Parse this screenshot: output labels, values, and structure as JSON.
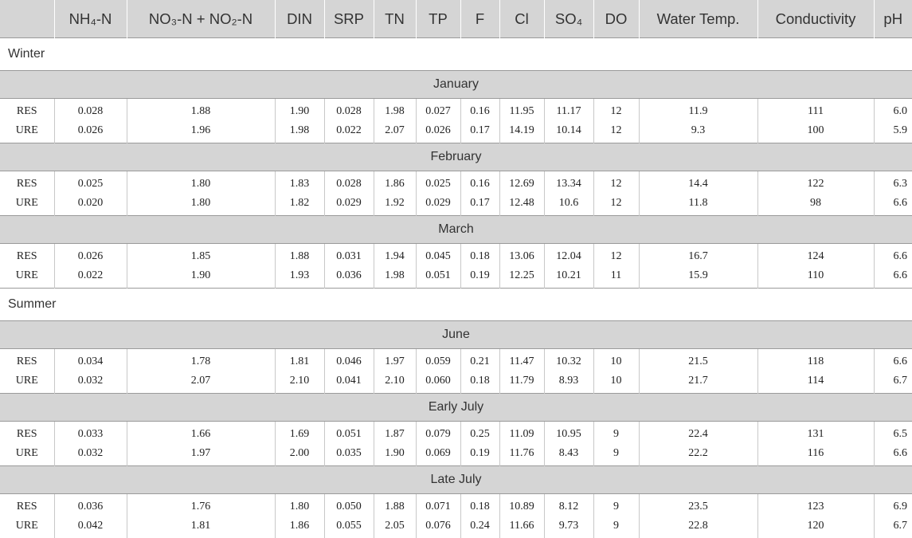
{
  "table": {
    "headers": [
      "",
      "NH₄-N",
      "NO₃-N + NO₂-N",
      "DIN",
      "SRP",
      "TN",
      "TP",
      "F",
      "Cl",
      "SO₄",
      "DO",
      "Water Temp.",
      "Conductivity",
      "pH"
    ],
    "seasons": [
      {
        "label": "Winter",
        "months": [
          {
            "label": "January",
            "rows": [
              [
                "RES",
                "0.028",
                "1.88",
                "1.90",
                "0.028",
                "1.98",
                "0.027",
                "0.16",
                "11.95",
                "11.17",
                "12",
                "11.9",
                "111",
                "6.0"
              ],
              [
                "URE",
                "0.026",
                "1.96",
                "1.98",
                "0.022",
                "2.07",
                "0.026",
                "0.17",
                "14.19",
                "10.14",
                "12",
                "9.3",
                "100",
                "5.9"
              ]
            ]
          },
          {
            "label": "February",
            "rows": [
              [
                "RES",
                "0.025",
                "1.80",
                "1.83",
                "0.028",
                "1.86",
                "0.025",
                "0.16",
                "12.69",
                "13.34",
                "12",
                "14.4",
                "122",
                "6.3"
              ],
              [
                "URE",
                "0.020",
                "1.80",
                "1.82",
                "0.029",
                "1.92",
                "0.029",
                "0.17",
                "12.48",
                "10.6",
                "12",
                "11.8",
                "98",
                "6.6"
              ]
            ]
          },
          {
            "label": "March",
            "rows": [
              [
                "RES",
                "0.026",
                "1.85",
                "1.88",
                "0.031",
                "1.94",
                "0.045",
                "0.18",
                "13.06",
                "12.04",
                "12",
                "16.7",
                "124",
                "6.6"
              ],
              [
                "URE",
                "0.022",
                "1.90",
                "1.93",
                "0.036",
                "1.98",
                "0.051",
                "0.19",
                "12.25",
                "10.21",
                "11",
                "15.9",
                "110",
                "6.6"
              ]
            ]
          }
        ]
      },
      {
        "label": "Summer",
        "months": [
          {
            "label": "June",
            "rows": [
              [
                "RES",
                "0.034",
                "1.78",
                "1.81",
                "0.046",
                "1.97",
                "0.059",
                "0.21",
                "11.47",
                "10.32",
                "10",
                "21.5",
                "118",
                "6.6"
              ],
              [
                "URE",
                "0.032",
                "2.07",
                "2.10",
                "0.041",
                "2.10",
                "0.060",
                "0.18",
                "11.79",
                "8.93",
                "10",
                "21.7",
                "114",
                "6.7"
              ]
            ]
          },
          {
            "label": "Early July",
            "rows": [
              [
                "RES",
                "0.033",
                "1.66",
                "1.69",
                "0.051",
                "1.87",
                "0.079",
                "0.25",
                "11.09",
                "10.95",
                "9",
                "22.4",
                "131",
                "6.5"
              ],
              [
                "URE",
                "0.032",
                "1.97",
                "2.00",
                "0.035",
                "1.90",
                "0.069",
                "0.19",
                "11.76",
                "8.43",
                "9",
                "22.2",
                "116",
                "6.6"
              ]
            ]
          },
          {
            "label": "Late July",
            "rows": [
              [
                "RES",
                "0.036",
                "1.76",
                "1.80",
                "0.050",
                "1.88",
                "0.071",
                "0.18",
                "10.89",
                "8.12",
                "9",
                "23.5",
                "123",
                "6.9"
              ],
              [
                "URE",
                "0.042",
                "1.81",
                "1.86",
                "0.055",
                "2.05",
                "0.076",
                "0.24",
                "11.66",
                "9.73",
                "9",
                "22.8",
                "120",
                "6.7"
              ]
            ]
          }
        ]
      }
    ]
  }
}
